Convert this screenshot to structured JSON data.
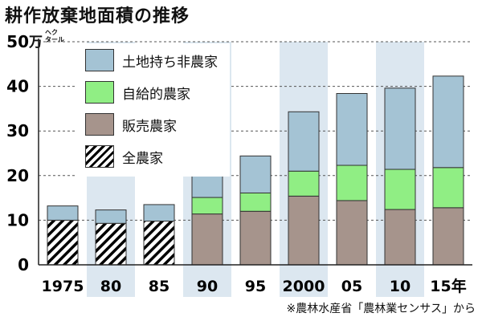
{
  "header": {
    "title": "耕作放棄地面積の推移"
  },
  "source_note": "※農林水産省「農林業センサス」から",
  "chart_data": {
    "type": "bar",
    "stacked": true,
    "unit": {
      "main": "万",
      "sub_line1": "ヘク",
      "sub_line2": "タール"
    },
    "categories": [
      "1975",
      "80",
      "85",
      "90",
      "95",
      "2000",
      "05",
      "10",
      "15年"
    ],
    "ylim": [
      0,
      50
    ],
    "yticks": [
      0,
      10,
      20,
      30,
      40,
      50
    ],
    "grid": true,
    "legend_position": "top-left",
    "alternate_band_color": "#dce7f0",
    "series": [
      {
        "name": "全農家",
        "pattern": "hatch",
        "color": "#000000",
        "values": [
          10,
          9.3,
          9.8,
          null,
          null,
          null,
          null,
          null,
          null
        ]
      },
      {
        "name": "販売農家",
        "color": "#a6948c",
        "values": [
          null,
          null,
          null,
          11.4,
          12.0,
          15.4,
          14.4,
          12.4,
          12.8
        ]
      },
      {
        "name": "自給的農家",
        "color": "#90ee84",
        "values": [
          null,
          null,
          null,
          3.7,
          4.1,
          5.6,
          7.9,
          9.0,
          9.0
        ]
      },
      {
        "name": "土地持ち非農家",
        "color": "#a4c3d4",
        "values": [
          3.2,
          3.0,
          3.7,
          6.6,
          8.3,
          13.3,
          16.1,
          18.2,
          20.5
        ]
      }
    ],
    "legend_order": [
      "土地持ち非農家",
      "自給的農家",
      "販売農家",
      "全農家"
    ]
  }
}
